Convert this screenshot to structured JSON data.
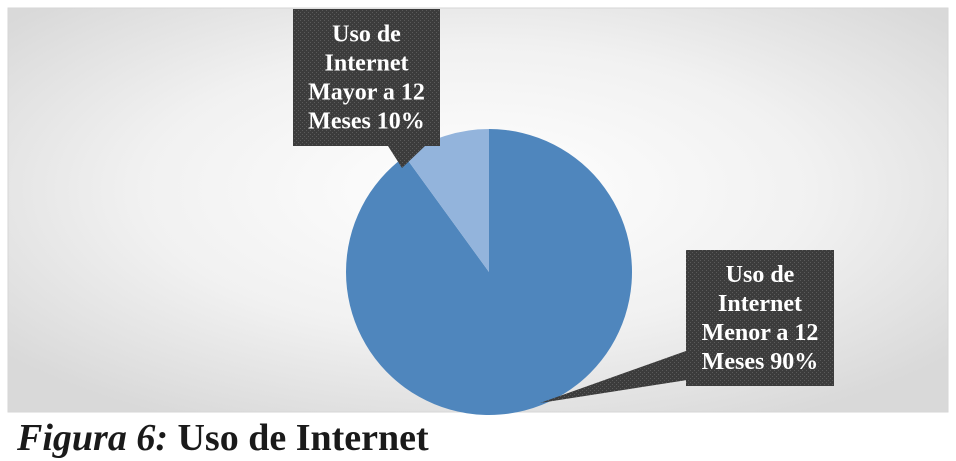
{
  "chart_data": {
    "type": "pie",
    "start_angle_deg": 0,
    "direction": "clockwise",
    "slices": [
      {
        "label": "Uso de Internet Menor a 12 Meses",
        "value": 90,
        "display_lines": [
          "Uso de",
          "Internet",
          "Menor a 12",
          "Meses 90%"
        ],
        "color": "#4f86bd"
      },
      {
        "label": "Uso de Internet Mayor a 12 Meses",
        "value": 10,
        "display_lines": [
          "Uso de",
          "Internet",
          "Mayor a 12",
          "Meses 10%"
        ],
        "color": "#93b4dc"
      }
    ],
    "data_label_style": "callout",
    "legend": "none"
  },
  "caption": {
    "figure": "Figura 6:",
    "text": "Uso de Internet"
  },
  "colors": {
    "callout_fill": "#3c3c3c",
    "background_center": "#ffffff",
    "background_edge": "#d9d9d9"
  }
}
